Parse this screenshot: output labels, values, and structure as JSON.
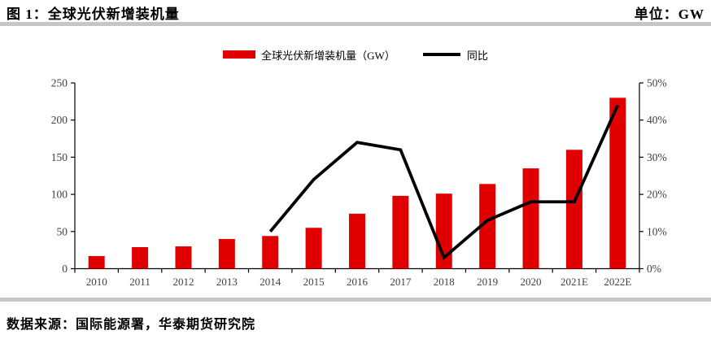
{
  "header": {
    "title": "图 1：全球光伏新增装机量",
    "unit_label": "单位：GW"
  },
  "legend": {
    "bar_label": "全球光伏新增装机量（GW）",
    "line_label": "同比"
  },
  "footer": {
    "source": "数据来源：国际能源署，华泰期货研究院"
  },
  "colors": {
    "bar": "#e00000",
    "line": "#000000",
    "axis": "#000000",
    "tick_text": "#404040",
    "divider": "#c6c6c6"
  },
  "chart_data": {
    "type": "bar",
    "title": "图 1：全球光伏新增装机量",
    "categories": [
      "2010",
      "2011",
      "2012",
      "2013",
      "2014",
      "2015",
      "2016",
      "2017",
      "2018",
      "2019",
      "2020",
      "2021E",
      "2022E"
    ],
    "series": [
      {
        "name": "全球光伏新增装机量（GW）",
        "type": "bar",
        "axis": "left",
        "values": [
          17,
          29,
          30,
          40,
          44,
          55,
          74,
          98,
          101,
          114,
          135,
          160,
          230
        ]
      },
      {
        "name": "同比",
        "type": "line",
        "axis": "right",
        "values": [
          null,
          null,
          null,
          null,
          10,
          24,
          34,
          32,
          3,
          13,
          18,
          18,
          44
        ]
      }
    ],
    "xlabel": "",
    "ylabel_left": "GW",
    "ylabel_right": "%",
    "left_axis": {
      "min": 0,
      "max": 250,
      "ticks": [
        0,
        50,
        100,
        150,
        200,
        250
      ],
      "suffix": ""
    },
    "right_axis": {
      "min": 0,
      "max": 50,
      "ticks": [
        0,
        10,
        20,
        30,
        40,
        50
      ],
      "suffix": "%"
    },
    "grid": false,
    "legend_position": "top"
  }
}
